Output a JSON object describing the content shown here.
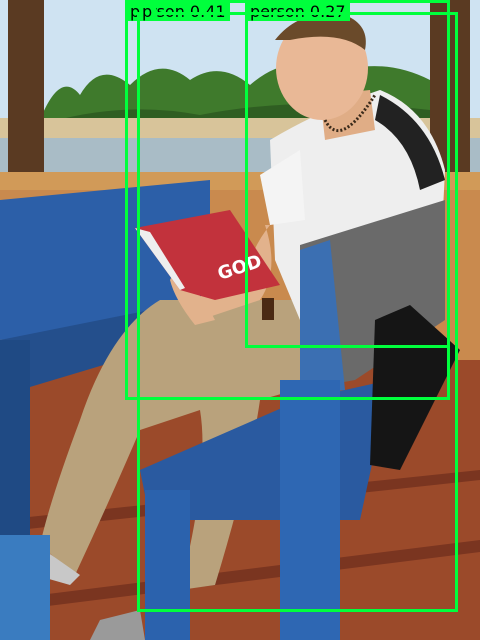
{
  "photo": {
    "subject": "man reading a book",
    "book_cover_text": "GOD"
  },
  "detections": [
    {
      "label_text": "person 0.41",
      "color": "#00ff3c"
    },
    {
      "label_text": "person 0.27",
      "color": "#00ff3c"
    },
    {
      "label_text": "p",
      "color": "#00ff3c"
    }
  ]
}
